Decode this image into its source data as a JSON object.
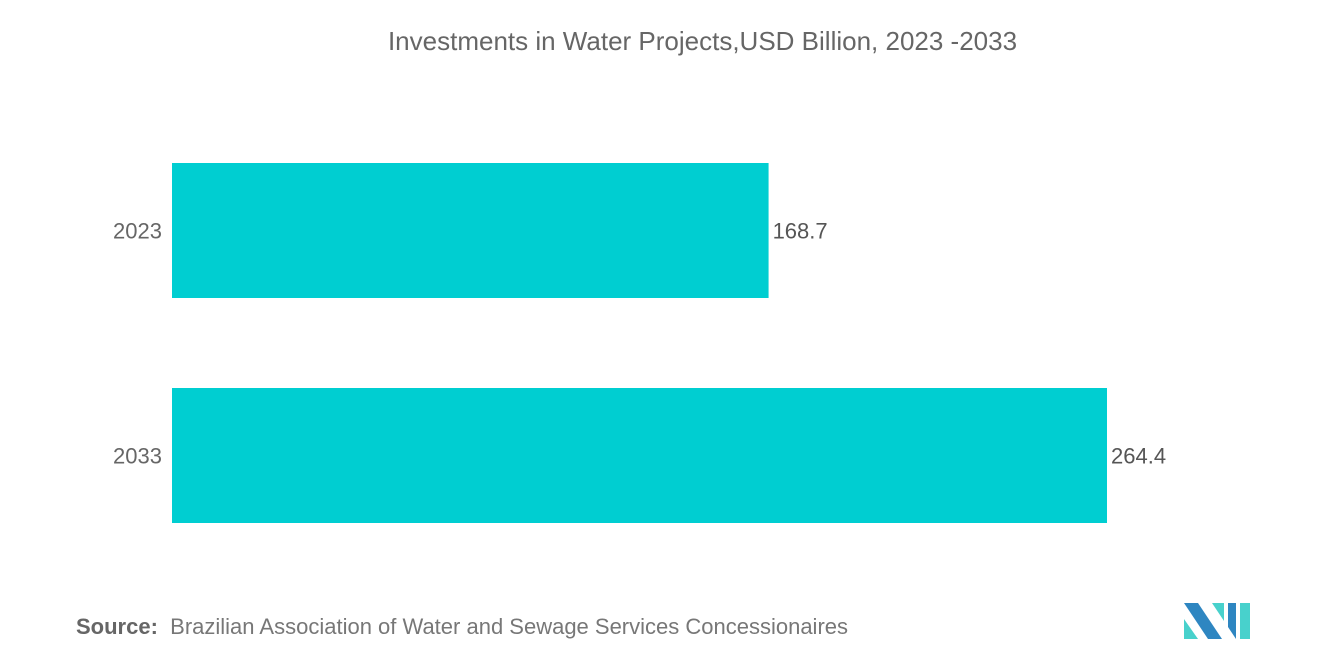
{
  "chart_data": {
    "type": "bar",
    "orientation": "horizontal",
    "title": "Investments in Water Projects,USD Billion, 2023 -2033",
    "categories": [
      "2023",
      "2033"
    ],
    "values": [
      168.7,
      264.4
    ],
    "value_labels": [
      "168.7",
      "264.4"
    ],
    "color": "#00CED1",
    "grid": false,
    "xlim": [
      0,
      264.4
    ]
  },
  "source": {
    "label": "Source:",
    "text": "Brazilian Association of Water and Sewage Services Concessionaires"
  },
  "logo": {
    "name": "Mordor Intelligence logo",
    "colors": [
      "#2E86C1",
      "#48D1CC"
    ]
  }
}
